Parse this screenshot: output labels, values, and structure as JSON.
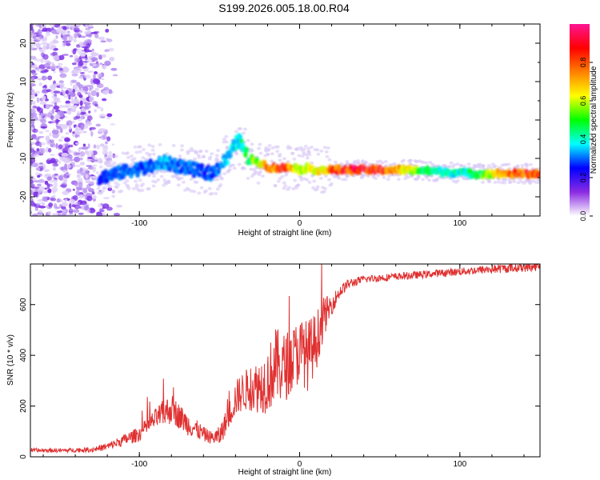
{
  "title": "S199.2026.005.18.00.R04",
  "chart_data": [
    {
      "type": "heatmap",
      "xlabel": "Height of straight line (km)",
      "ylabel": "Frequency (Hz)",
      "xlim": [
        -168,
        150
      ],
      "ylim": [
        -25,
        25
      ],
      "xticks": [
        -100,
        0,
        100
      ],
      "yticks": [
        -20,
        -10,
        0,
        10,
        20
      ],
      "colorbar": {
        "label": "Normalized spectral amplitude",
        "range": [
          0,
          1
        ],
        "ticks": [
          "0.0",
          "0.2",
          "0.4",
          "0.6",
          "0.8"
        ],
        "colors": [
          "#ffffff",
          "#8a2be2",
          "#0000ff",
          "#00ffff",
          "#00ff00",
          "#ffff00",
          "#ff8000",
          "#ff0000",
          "#ff1493"
        ]
      },
      "ridge": {
        "x": [
          -125,
          -115,
          -105,
          -95,
          -85,
          -75,
          -65,
          -55,
          -45,
          -38,
          -32,
          -25,
          -18,
          -10,
          -5,
          0,
          5,
          10,
          20,
          30,
          50,
          70,
          90,
          110,
          130,
          150
        ],
        "freq": [
          -15,
          -14,
          -13,
          -12.5,
          -11,
          -12,
          -13,
          -14,
          -10,
          -5,
          -10,
          -11,
          -12.5,
          -12.5,
          -12,
          -13,
          -12.5,
          -13,
          -13,
          -13,
          -13,
          -13,
          -13.5,
          -14,
          -14,
          -14
        ],
        "amplitude": [
          0.25,
          0.3,
          0.3,
          0.3,
          0.35,
          0.3,
          0.3,
          0.3,
          0.35,
          0.4,
          0.5,
          0.6,
          0.8,
          0.9,
          0.7,
          0.6,
          0.6,
          0.65,
          0.8,
          0.9,
          0.9,
          0.6,
          0.4,
          0.45,
          0.8,
          0.9
        ]
      },
      "noise_region": {
        "x_from": -168,
        "x_to": -112,
        "freq_from": -25,
        "freq_to": 25,
        "amplitude": 0.1
      }
    },
    {
      "type": "line",
      "xlabel": "Height of straight line (km)",
      "ylabel": "SNR (10 * v/v)",
      "xlim": [
        -168,
        150
      ],
      "ylim": [
        0,
        760
      ],
      "xticks": [
        -100,
        0,
        100
      ],
      "yticks": [
        0,
        200,
        400,
        600
      ],
      "color": "#e03030",
      "envelope": {
        "x": [
          -168,
          -150,
          -130,
          -120,
          -100,
          -90,
          -85,
          -80,
          -75,
          -70,
          -65,
          -60,
          -55,
          -50,
          -45,
          -40,
          -35,
          -30,
          -25,
          -20,
          -15,
          -10,
          -5,
          0,
          5,
          10,
          15,
          20,
          25,
          30,
          40,
          60,
          80,
          100,
          120,
          150
        ],
        "mean": [
          25,
          25,
          28,
          40,
          90,
          150,
          170,
          190,
          160,
          130,
          110,
          90,
          75,
          80,
          150,
          230,
          260,
          270,
          280,
          300,
          360,
          350,
          380,
          420,
          400,
          450,
          550,
          600,
          650,
          680,
          700,
          710,
          720,
          730,
          740,
          750
        ],
        "spread": [
          8,
          8,
          10,
          15,
          30,
          40,
          55,
          60,
          50,
          45,
          40,
          30,
          25,
          40,
          50,
          70,
          80,
          90,
          110,
          130,
          150,
          140,
          130,
          130,
          140,
          120,
          80,
          40,
          25,
          20,
          15,
          15,
          15,
          15,
          18,
          18
        ]
      }
    }
  ]
}
